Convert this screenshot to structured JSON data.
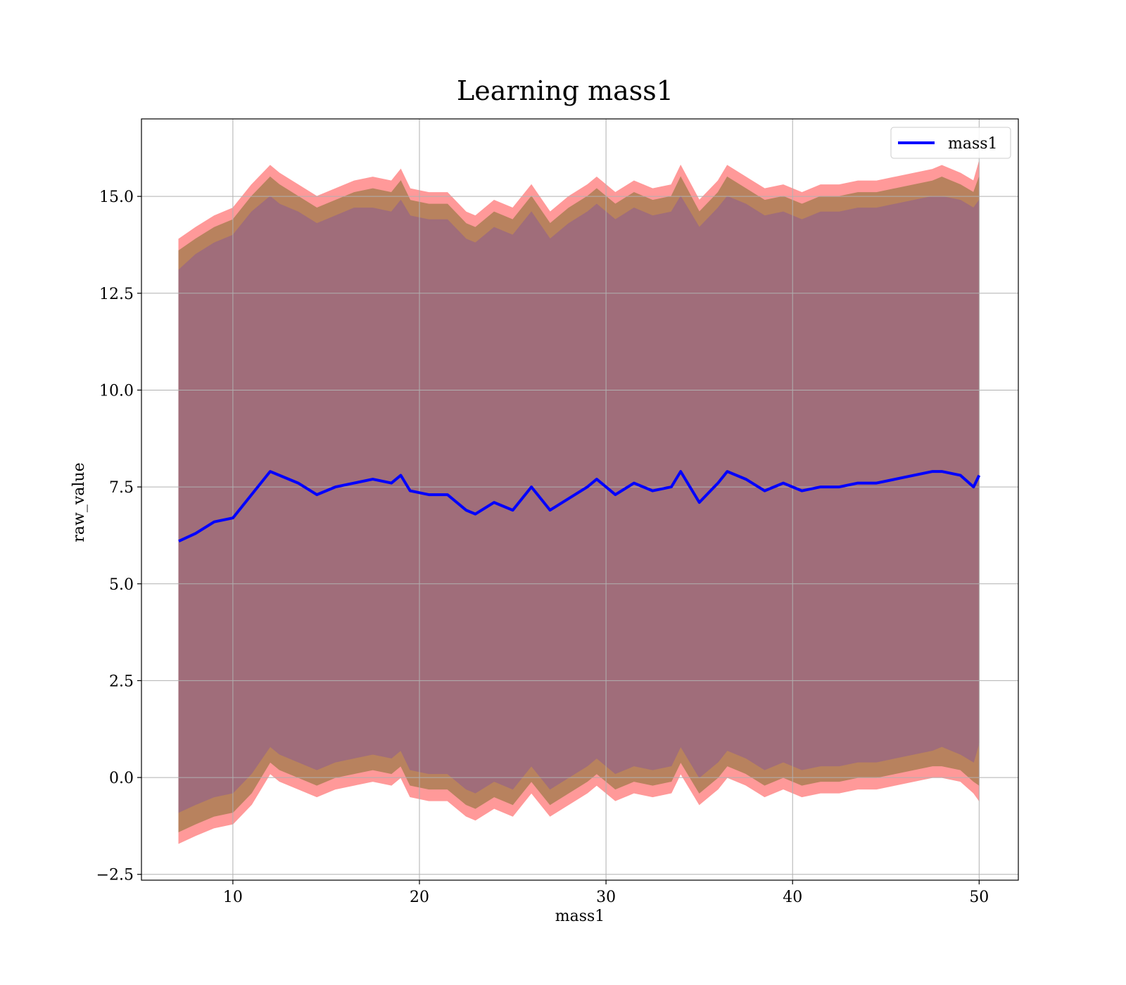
{
  "chart_data": {
    "type": "area",
    "title": "Learning mass1",
    "xlabel": "mass1",
    "ylabel": "raw_value",
    "xlim": [
      5.1,
      52.1
    ],
    "ylim": [
      -2.65,
      17.0
    ],
    "xticks": [
      10,
      20,
      30,
      40,
      50
    ],
    "xtick_labels": [
      "10",
      "20",
      "30",
      "40",
      "50"
    ],
    "yticks": [
      -2.5,
      0.0,
      2.5,
      5.0,
      7.5,
      10.0,
      12.5,
      15.0
    ],
    "ytick_labels": [
      "−2.5",
      "0.0",
      "2.5",
      "5.0",
      "7.5",
      "10.0",
      "12.5",
      "15.0"
    ],
    "grid": true,
    "legend": {
      "position": "top-right",
      "entries": [
        {
          "name": "mass1",
          "color": "#0000ff"
        }
      ]
    },
    "colors": {
      "mean_line": "#0000ff",
      "outer_band": "#ff9999",
      "middle_band": "#b8825e",
      "inner_band": "#a06d7a"
    },
    "x": [
      7.1,
      8.0,
      9.0,
      10.0,
      11.0,
      12.0,
      12.5,
      13.5,
      14.5,
      15.5,
      16.5,
      17.5,
      18.5,
      19.0,
      19.5,
      20.5,
      21.5,
      22.5,
      23.0,
      24.0,
      25.0,
      26.0,
      27.0,
      28.0,
      29.0,
      29.5,
      30.5,
      31.5,
      32.5,
      33.5,
      34.0,
      35.0,
      36.0,
      36.5,
      37.5,
      38.5,
      39.5,
      40.5,
      41.5,
      42.5,
      43.5,
      44.5,
      45.5,
      46.5,
      47.5,
      48.0,
      49.0,
      49.7,
      50.0
    ],
    "series": [
      {
        "name": "mass1",
        "role": "mean",
        "values": [
          6.1,
          6.3,
          6.6,
          6.7,
          7.3,
          7.9,
          7.8,
          7.6,
          7.3,
          7.5,
          7.6,
          7.7,
          7.6,
          7.8,
          7.4,
          7.3,
          7.3,
          6.9,
          6.8,
          7.1,
          6.9,
          7.5,
          6.9,
          7.2,
          7.5,
          7.7,
          7.3,
          7.6,
          7.4,
          7.5,
          7.9,
          7.1,
          7.6,
          7.9,
          7.7,
          7.4,
          7.6,
          7.4,
          7.5,
          7.5,
          7.6,
          7.6,
          7.7,
          7.8,
          7.9,
          7.9,
          7.8,
          7.5,
          7.8
        ]
      },
      {
        "role": "band_outer_upper",
        "values": [
          13.9,
          14.2,
          14.5,
          14.7,
          15.3,
          15.8,
          15.6,
          15.3,
          15.0,
          15.2,
          15.4,
          15.5,
          15.4,
          15.7,
          15.2,
          15.1,
          15.1,
          14.6,
          14.5,
          14.9,
          14.7,
          15.3,
          14.6,
          15.0,
          15.3,
          15.5,
          15.1,
          15.4,
          15.2,
          15.3,
          15.8,
          14.9,
          15.4,
          15.8,
          15.5,
          15.2,
          15.3,
          15.1,
          15.3,
          15.3,
          15.4,
          15.4,
          15.5,
          15.6,
          15.7,
          15.8,
          15.6,
          15.4,
          15.9
        ]
      },
      {
        "role": "band_outer_lower",
        "values": [
          -1.7,
          -1.5,
          -1.3,
          -1.2,
          -0.7,
          0.1,
          -0.1,
          -0.3,
          -0.5,
          -0.3,
          -0.2,
          -0.1,
          -0.2,
          0.0,
          -0.5,
          -0.6,
          -0.6,
          -1.0,
          -1.1,
          -0.8,
          -1.0,
          -0.4,
          -1.0,
          -0.7,
          -0.4,
          -0.2,
          -0.6,
          -0.4,
          -0.5,
          -0.4,
          0.1,
          -0.7,
          -0.3,
          0.0,
          -0.2,
          -0.5,
          -0.3,
          -0.5,
          -0.4,
          -0.4,
          -0.3,
          -0.3,
          -0.2,
          -0.1,
          0.0,
          0.0,
          -0.1,
          -0.4,
          -0.6
        ]
      },
      {
        "role": "band_middle_upper",
        "values": [
          13.6,
          13.9,
          14.2,
          14.4,
          15.0,
          15.5,
          15.3,
          15.0,
          14.7,
          14.9,
          15.1,
          15.2,
          15.1,
          15.4,
          14.9,
          14.8,
          14.8,
          14.3,
          14.2,
          14.6,
          14.4,
          15.0,
          14.3,
          14.7,
          15.0,
          15.2,
          14.8,
          15.1,
          14.9,
          15.0,
          15.5,
          14.6,
          15.1,
          15.5,
          15.2,
          14.9,
          15.0,
          14.8,
          15.0,
          15.0,
          15.1,
          15.1,
          15.2,
          15.3,
          15.4,
          15.5,
          15.3,
          15.1,
          15.5
        ]
      },
      {
        "role": "band_middle_lower",
        "values": [
          -1.4,
          -1.2,
          -1.0,
          -0.9,
          -0.4,
          0.4,
          0.2,
          0.0,
          -0.2,
          0.0,
          0.1,
          0.2,
          0.1,
          0.3,
          -0.2,
          -0.3,
          -0.3,
          -0.7,
          -0.8,
          -0.5,
          -0.7,
          -0.1,
          -0.7,
          -0.4,
          -0.1,
          0.1,
          -0.3,
          -0.1,
          -0.2,
          -0.1,
          0.4,
          -0.4,
          0.0,
          0.3,
          0.1,
          -0.2,
          0.0,
          -0.2,
          -0.1,
          -0.1,
          0.0,
          0.0,
          0.1,
          0.2,
          0.3,
          0.3,
          0.2,
          -0.1,
          -0.2
        ]
      },
      {
        "role": "band_inner_upper",
        "values": [
          13.1,
          13.5,
          13.8,
          14.0,
          14.6,
          15.0,
          14.8,
          14.6,
          14.3,
          14.5,
          14.7,
          14.7,
          14.6,
          14.9,
          14.5,
          14.4,
          14.4,
          13.9,
          13.8,
          14.2,
          14.0,
          14.6,
          13.9,
          14.3,
          14.6,
          14.8,
          14.4,
          14.7,
          14.5,
          14.6,
          15.0,
          14.2,
          14.7,
          15.0,
          14.8,
          14.5,
          14.6,
          14.4,
          14.6,
          14.6,
          14.7,
          14.7,
          14.8,
          14.9,
          15.0,
          15.0,
          14.9,
          14.7,
          14.9
        ]
      },
      {
        "role": "band_inner_lower",
        "values": [
          -0.9,
          -0.7,
          -0.5,
          -0.4,
          0.1,
          0.8,
          0.6,
          0.4,
          0.2,
          0.4,
          0.5,
          0.6,
          0.5,
          0.7,
          0.2,
          0.1,
          0.1,
          -0.3,
          -0.4,
          -0.1,
          -0.3,
          0.3,
          -0.3,
          0.0,
          0.3,
          0.5,
          0.1,
          0.3,
          0.2,
          0.3,
          0.8,
          0.0,
          0.4,
          0.7,
          0.5,
          0.2,
          0.4,
          0.2,
          0.3,
          0.3,
          0.4,
          0.4,
          0.5,
          0.6,
          0.7,
          0.8,
          0.6,
          0.4,
          0.9
        ]
      }
    ]
  }
}
